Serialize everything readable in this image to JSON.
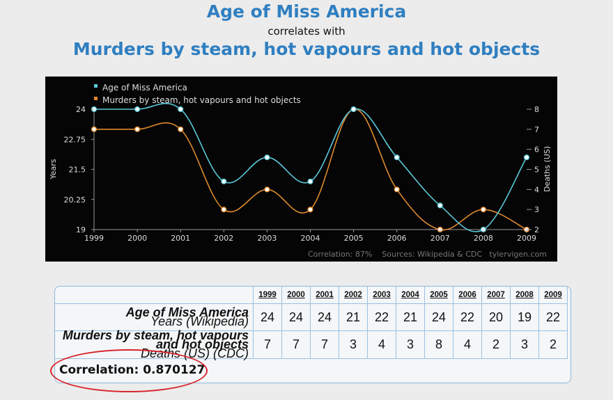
{
  "header": {
    "title_1": "Age of Miss America",
    "subtitle": "correlates with",
    "title_2": "Murders by steam, hot vapours and hot objects"
  },
  "chart_data": {
    "type": "line",
    "x": [
      1999,
      2000,
      2001,
      2002,
      2003,
      2004,
      2005,
      2006,
      2007,
      2008,
      2009
    ],
    "series": [
      {
        "name": "Age of Miss America",
        "axis": "left",
        "color": "#5bc8d8",
        "values": [
          24,
          24,
          24,
          21,
          22,
          21,
          24,
          22,
          20,
          19,
          22
        ]
      },
      {
        "name": "Murders by steam, hot vapours and hot objects",
        "axis": "right",
        "color": "#e08a2e",
        "values": [
          7,
          7,
          7,
          3,
          4,
          3,
          8,
          4,
          2,
          3,
          2
        ]
      }
    ],
    "ylabel": "Years",
    "y2label": "Deaths (US)",
    "ylim": [
      19,
      24
    ],
    "yticks": [
      "24",
      "22.75",
      "21.5",
      "20.25",
      "19"
    ],
    "y2lim": [
      2,
      8
    ],
    "y2ticks": [
      "8",
      "7",
      "6",
      "5",
      "4",
      "3",
      "2"
    ],
    "xticks": [
      "1999",
      "2000",
      "2001",
      "2002",
      "2003",
      "2004",
      "2005",
      "2006",
      "2007",
      "2008",
      "2009"
    ],
    "footer": "Correlation: 87%    Sources: Wikipedia & CDC   tylervigen.com",
    "legend": "top-left"
  },
  "table": {
    "years": [
      "1999",
      "2000",
      "2001",
      "2002",
      "2003",
      "2004",
      "2005",
      "2006",
      "2007",
      "2008",
      "2009"
    ],
    "row1_label": "Age of Miss America",
    "row1_sub": "Years (Wikipedia)",
    "row1_values": [
      "24",
      "24",
      "24",
      "21",
      "22",
      "21",
      "24",
      "22",
      "20",
      "19",
      "22"
    ],
    "row2_label": "Murders by steam, hot vapours and hot objects",
    "row2_sub": "Deaths (US) (CDC)",
    "row2_values": [
      "7",
      "7",
      "7",
      "3",
      "4",
      "3",
      "8",
      "4",
      "2",
      "3",
      "2"
    ],
    "correlation": "Correlation: 0.870127"
  }
}
